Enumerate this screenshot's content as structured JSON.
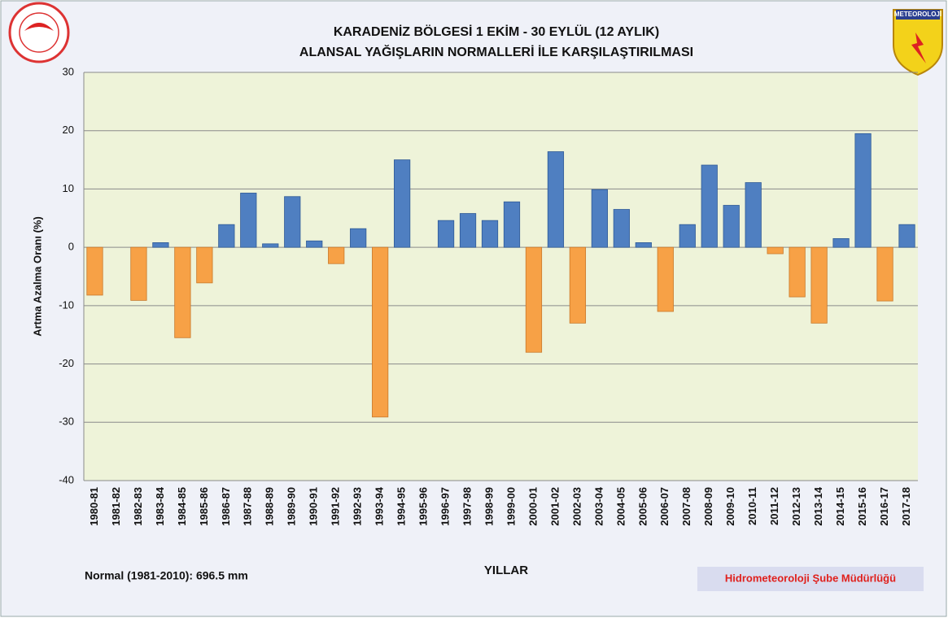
{
  "chart_data": {
    "type": "bar",
    "title": [
      "KARADENİZ BÖLGESİ  1 EKİM - 30 EYLÜL (12 AYLIK)",
      "ALANSAL YAĞIŞLARIN NORMALLERİ İLE KARŞILAŞTIRILMASI"
    ],
    "y_label": "Artma Azalma Oranı (%)",
    "x_label": "YILLAR",
    "note": "Normal (1981-2010): 696.5 mm",
    "source": "Hidrometeoroloji  Şube  Müdürlüğü",
    "logo_text": "METEOROLOJİ",
    "categories": [
      "1980-81",
      "1981-82",
      "1982-83",
      "1983-84",
      "1984-85",
      "1985-86",
      "1986-87",
      "1987-88",
      "1988-89",
      "1989-90",
      "1990-91",
      "1991-92",
      "1992-93",
      "1993-94",
      "1994-95",
      "1995-96",
      "1996-97",
      "1997-98",
      "1998-99",
      "1999-00",
      "2000-01",
      "2001-02",
      "2002-03",
      "2003-04",
      "2004-05",
      "2005-06",
      "2006-07",
      "2007-08",
      "2008-09",
      "2009-10",
      "2010-11",
      "2011-12",
      "2012-13",
      "2013-14",
      "2014-15",
      "2015-16",
      "2016-17",
      "2017-18"
    ],
    "values": [
      -8.2,
      0,
      -9.1,
      0.8,
      -15.5,
      -6.1,
      3.9,
      9.3,
      0.6,
      8.7,
      1.1,
      -2.8,
      3.2,
      -29.1,
      15.0,
      0,
      4.6,
      5.8,
      4.6,
      7.8,
      -18.0,
      16.4,
      -13.0,
      9.9,
      6.5,
      0.8,
      -11.0,
      3.9,
      14.1,
      7.2,
      11.1,
      -1.1,
      -8.5,
      -13.0,
      1.5,
      19.5,
      -9.2,
      3.9
    ],
    "positive_color": "#4f7fc1",
    "negative_color": "#f7a146",
    "ylim": [
      -40,
      30
    ],
    "yticks": [
      -40,
      -30,
      -20,
      -10,
      0,
      10,
      20,
      30
    ],
    "grid": true
  }
}
